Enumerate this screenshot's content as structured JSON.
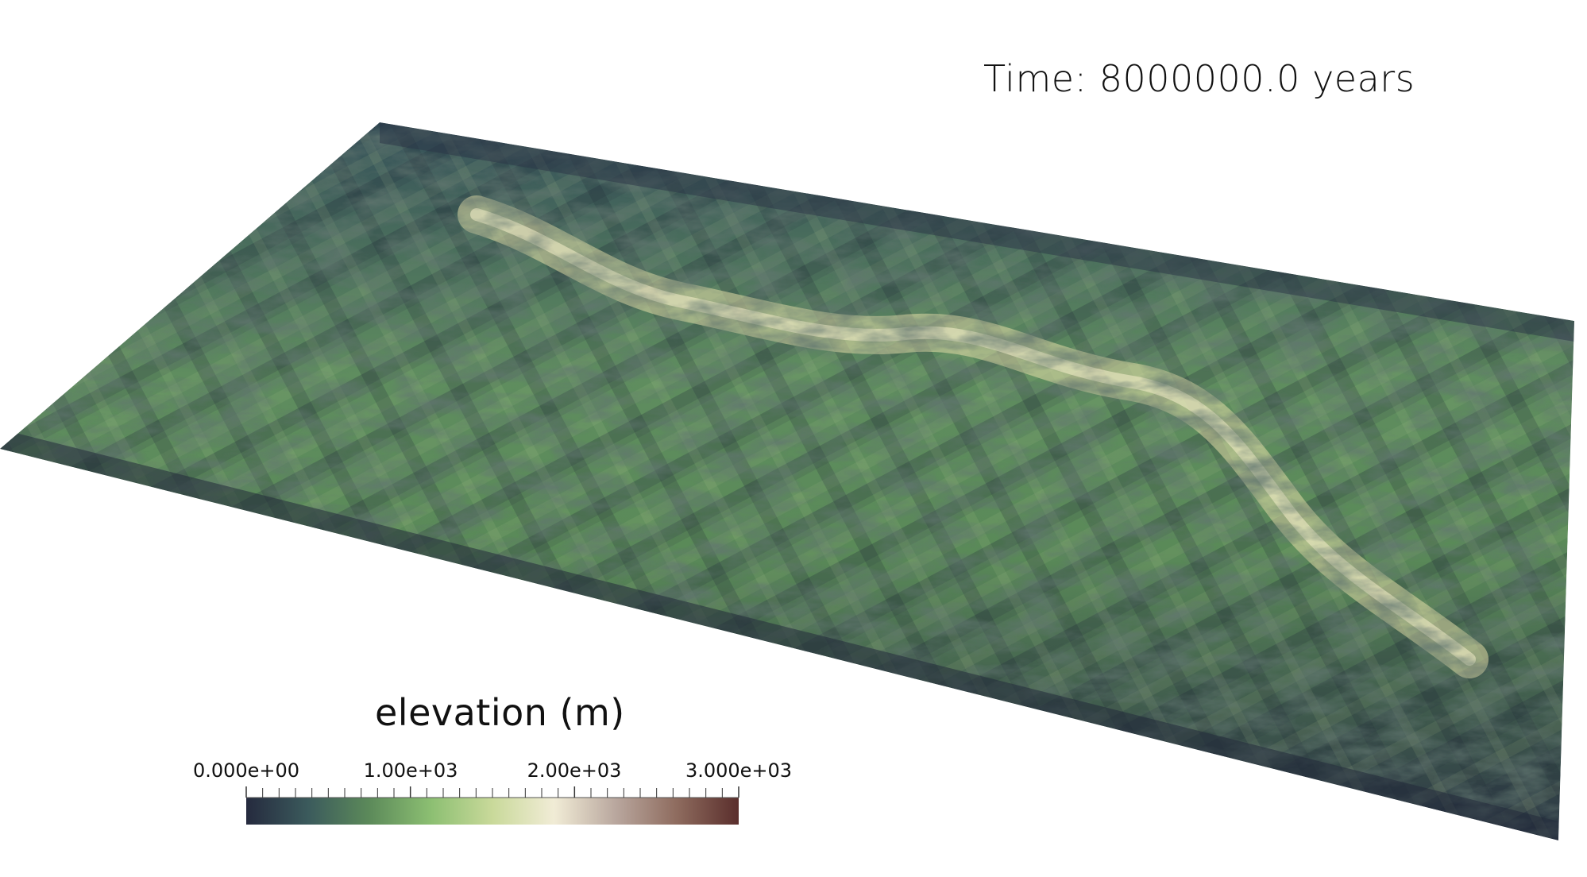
{
  "time_label": "Time: 8000000.0 years",
  "colorbar": {
    "title": "elevation (m)",
    "tick_labels": [
      "0.000e+00",
      "1.00e+03",
      "2.00e+03",
      "3.000e+03"
    ],
    "range": [
      0,
      3000
    ],
    "colors": [
      "#252a3e",
      "#3b5a5c",
      "#5c8a5a",
      "#8cbf72",
      "#c9d99a",
      "#f1ecd6",
      "#b9a79e",
      "#8e6b5e",
      "#5a2e2c"
    ]
  },
  "terrain": {
    "colors": {
      "low": "#2b3447",
      "mid": "#5f8c5f",
      "high": "#a9c98a",
      "ridge": "#dcdba8"
    }
  }
}
